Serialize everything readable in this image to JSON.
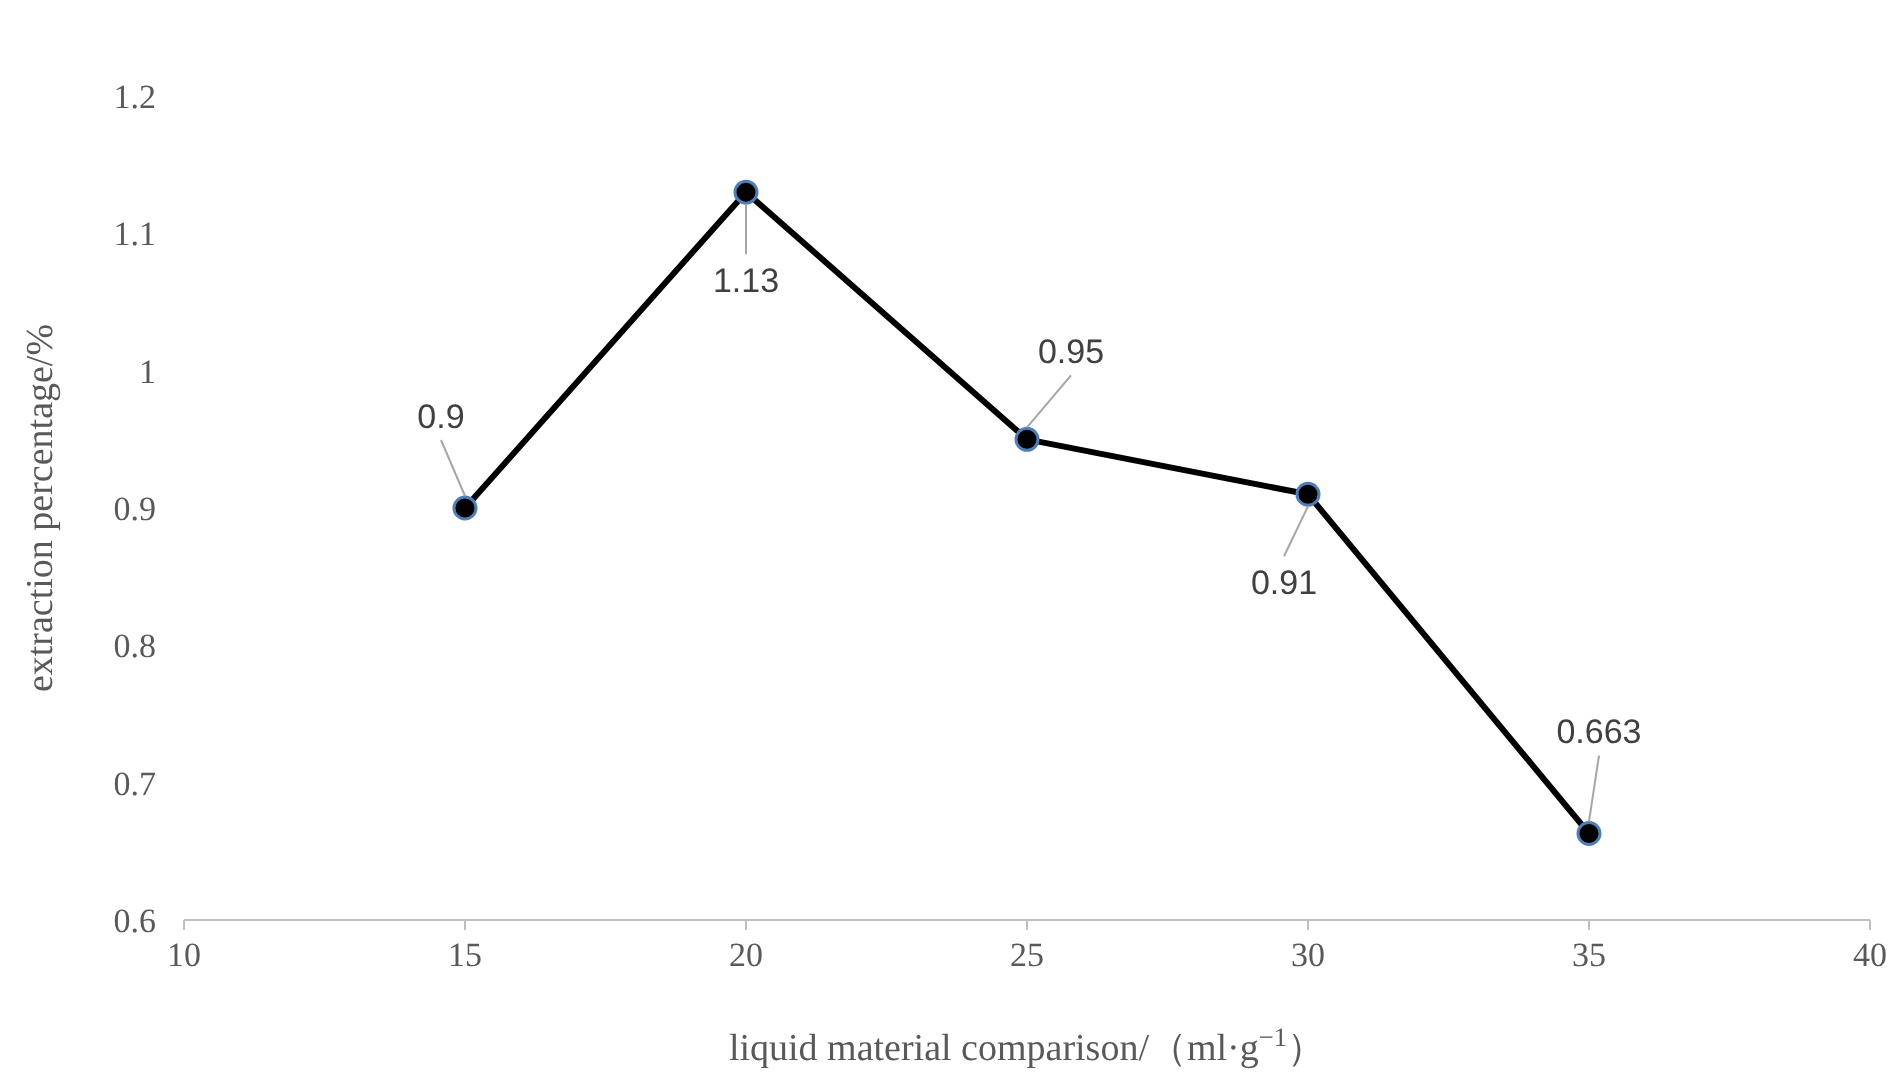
{
  "chart_data": {
    "type": "line",
    "xlabel": "liquid material comparison/（ml·g$^{−1}$）",
    "ylabel": "extraction percentage/%",
    "x": [
      15,
      20,
      25,
      30,
      35
    ],
    "series": [
      {
        "color": "#000000",
        "values": [
          0.9,
          1.13,
          0.95,
          0.91,
          0.663
        ]
      }
    ],
    "xlim": [
      10,
      40
    ],
    "xticks": [
      10,
      15,
      20,
      25,
      30,
      35,
      40
    ],
    "ylim": [
      0.6,
      1.2
    ],
    "yticks": [
      0.6,
      0.7,
      0.8,
      0.9,
      1,
      1.1,
      1.2
    ],
    "marker": "circle",
    "line_style": "solid",
    "grid": false,
    "data_labels": true
  }
}
